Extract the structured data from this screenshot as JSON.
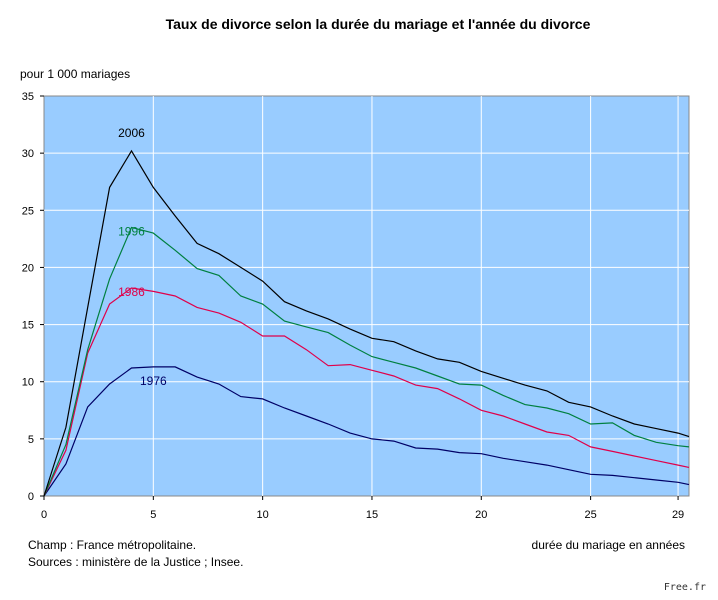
{
  "chart_data": {
    "type": "line",
    "title": "Taux de divorce selon la durée du mariage et l'année du divorce",
    "ylabel": "pour 1 000 mariages",
    "xlabel": "durée du mariage en années",
    "xlim": [
      0,
      29.5
    ],
    "ylim": [
      0,
      35
    ],
    "x_ticks": [
      0,
      5,
      10,
      15,
      20,
      25,
      29
    ],
    "y_ticks": [
      0,
      5,
      10,
      15,
      20,
      25,
      30,
      35
    ],
    "grid": true,
    "plot_background": "#99ccff",
    "series": [
      {
        "name": "1976",
        "color": "#000066",
        "x": [
          0,
          1,
          2,
          3,
          4,
          5,
          6,
          7,
          8,
          9,
          10,
          11,
          12,
          13,
          14,
          15,
          16,
          17,
          18,
          19,
          20,
          21,
          22,
          23,
          24,
          25,
          26,
          27,
          28,
          29,
          29.5
        ],
        "values": [
          0,
          2.8,
          7.8,
          9.8,
          11.2,
          11.3,
          11.3,
          10.4,
          9.8,
          8.7,
          8.5,
          7.7,
          7.0,
          6.3,
          5.5,
          5.0,
          4.8,
          4.2,
          4.1,
          3.8,
          3.7,
          3.3,
          3.0,
          2.7,
          2.3,
          1.9,
          1.8,
          1.6,
          1.4,
          1.2,
          1.0
        ]
      },
      {
        "name": "1986",
        "color": "#e0004a",
        "x": [
          0,
          1,
          2,
          3,
          4,
          5,
          6,
          7,
          8,
          9,
          10,
          11,
          12,
          13,
          14,
          15,
          16,
          17,
          18,
          19,
          20,
          21,
          22,
          23,
          24,
          25,
          26,
          27,
          28,
          29,
          29.5
        ],
        "values": [
          0,
          4.0,
          12.5,
          16.8,
          18.2,
          17.9,
          17.5,
          16.5,
          16.0,
          15.2,
          14.0,
          14.0,
          12.8,
          11.4,
          11.5,
          11.0,
          10.5,
          9.7,
          9.4,
          8.5,
          7.5,
          7.0,
          6.3,
          5.6,
          5.3,
          4.3,
          3.9,
          3.5,
          3.1,
          2.7,
          2.5
        ]
      },
      {
        "name": "1996",
        "color": "#008040",
        "x": [
          0,
          1,
          2,
          3,
          4,
          5,
          6,
          7,
          8,
          9,
          10,
          11,
          12,
          13,
          14,
          15,
          16,
          17,
          18,
          19,
          20,
          21,
          22,
          23,
          24,
          25,
          26,
          27,
          28,
          29,
          29.5
        ],
        "values": [
          0,
          4.5,
          12.8,
          19.0,
          23.5,
          23.0,
          21.5,
          19.9,
          19.3,
          17.5,
          16.8,
          15.3,
          14.8,
          14.3,
          13.2,
          12.2,
          11.7,
          11.2,
          10.5,
          9.8,
          9.7,
          8.8,
          8.0,
          7.7,
          7.2,
          6.3,
          6.4,
          5.3,
          4.7,
          4.4,
          4.3
        ]
      },
      {
        "name": "2006",
        "color": "#000000",
        "x": [
          0,
          1,
          2,
          3,
          4,
          5,
          6,
          7,
          8,
          9,
          10,
          11,
          12,
          13,
          14,
          15,
          16,
          17,
          18,
          19,
          20,
          21,
          22,
          23,
          24,
          25,
          26,
          27,
          28,
          29,
          29.5
        ],
        "values": [
          0,
          6.0,
          16.5,
          27.0,
          30.2,
          27.0,
          24.5,
          22.1,
          21.2,
          20.0,
          18.8,
          17.0,
          16.2,
          15.5,
          14.6,
          13.8,
          13.5,
          12.7,
          12.0,
          11.7,
          10.9,
          10.3,
          9.7,
          9.2,
          8.2,
          7.8,
          7.0,
          6.3,
          5.9,
          5.5,
          5.2
        ]
      }
    ]
  },
  "notes": {
    "champ": "Champ : France métropolitaine.",
    "sources": "Sources : ministère de la Justice ; Insee."
  },
  "credit": "Free.fr"
}
